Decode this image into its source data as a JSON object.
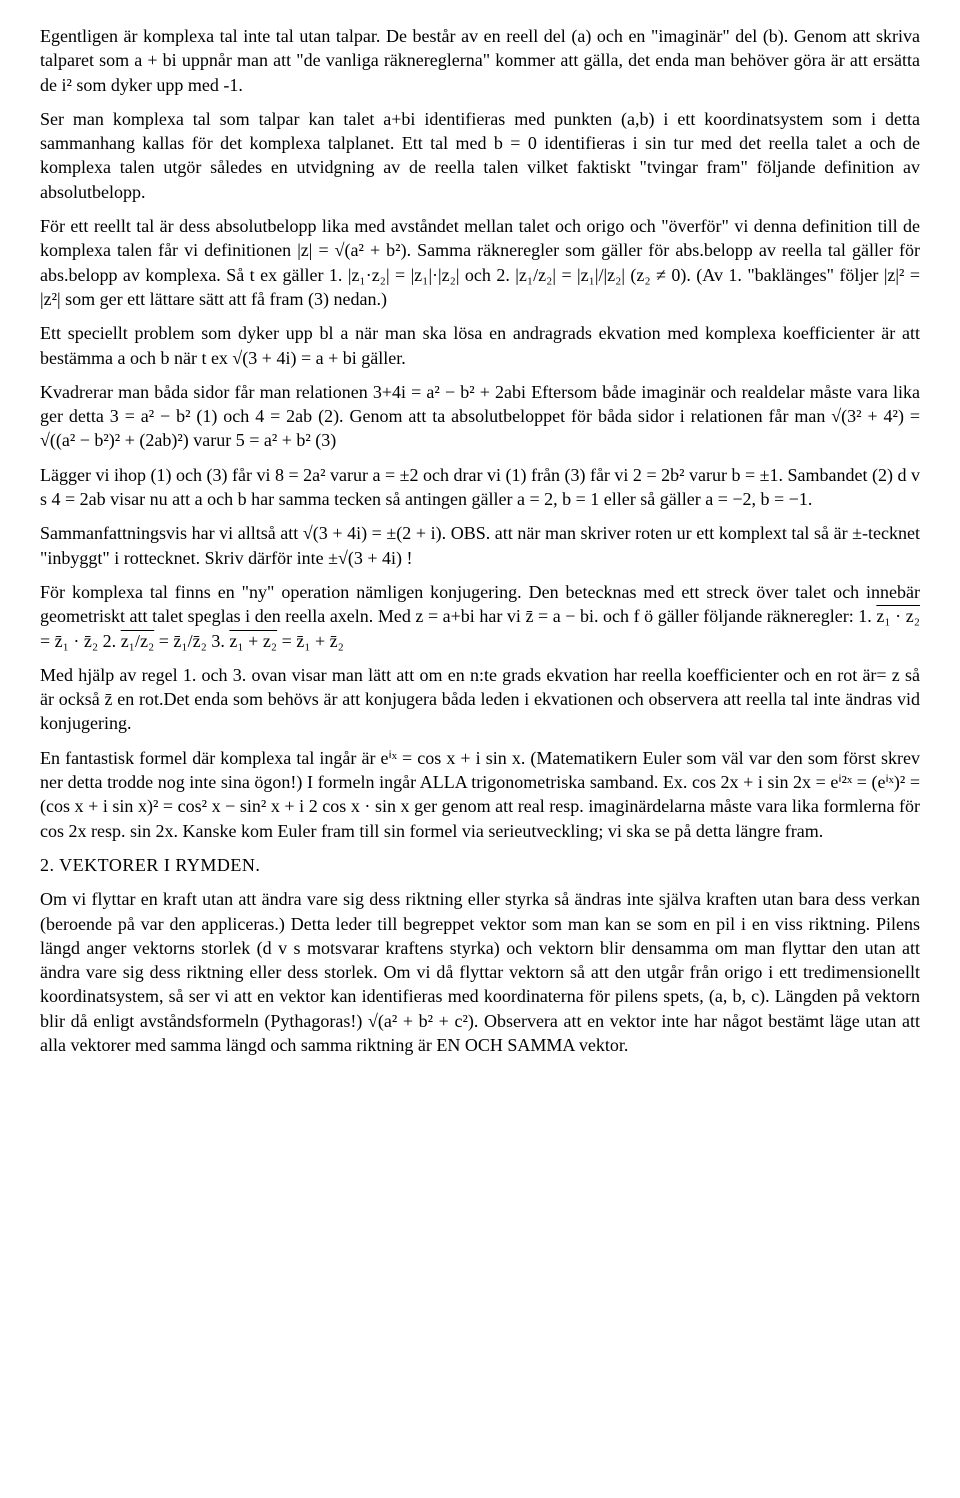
{
  "paragraphs": {
    "p1": "Egentligen är komplexa tal inte tal utan talpar. De består av en reell del (a) och en \"imaginär\" del (b). Genom att skriva talparet som a + bi uppnår man att \"de vanliga räknereglerna\" kommer att gälla, det enda man behöver göra är att ersätta de i² som dyker upp med -1.",
    "p2": "Ser man komplexa tal som talpar kan talet a+bi identifieras med punkten (a,b) i ett koordinatsystem som i detta sammanhang kallas för det komplexa talplanet. Ett tal med b = 0 identifieras i sin tur med det reella talet a och de komplexa talen utgör således en utvidgning av de reella talen vilket faktiskt \"tvingar fram\" följande definition av absolutbelopp.",
    "p3": "För ett reellt tal är dess absolutbelopp lika med avståndet mellan talet och origo och \"överför\" vi denna definition till de komplexa talen får vi definitionen  |z| = √(a² + b²). Samma räkneregler som gäller för abs.belopp av reella tal gäller för abs.belopp av komplexa. Så t ex gäller 1. |z₁·z₂| = |z₁|·|z₂| och 2. |z₁/z₂| = |z₁|/|z₂| (z₂ ≠ 0). (Av 1. \"baklänges\" följer |z|² = |z²| som ger ett lättare sätt att få fram (3) nedan.)",
    "p4": "Ett speciellt problem som dyker upp bl a när man ska lösa en andragrads ekvation med komplexa koefficienter är att bestämma a och b när t  ex √(3 + 4i) = a + bi gäller.",
    "p5": "Kvadrerar man båda sidor får man relationen 3+4i = a² − b² + 2abi Eftersom både imaginär och realdelar måste vara lika ger detta 3 = a² − b² (1) och 4 = 2ab (2). Genom att ta absolutbeloppet för båda sidor i relationen får man  √(3² + 4²) = √((a² − b²)² + (2ab)²) varur 5 = a² + b² (3)",
    "p6": "Lägger vi ihop (1) och (3) får vi  8 = 2a²  varur a = ±2 och drar vi (1) från (3) får vi  2 = 2b²  varur  b = ±1. Sambandet (2) d v s  4 = 2ab visar nu att a och b har samma tecken så antingen gäller a = 2, b = 1 eller så gäller a = −2, b = −1.",
    "p7": "Sammanfattningsvis har vi alltså att √(3 + 4i) = ±(2 + i). OBS. att när man skriver roten ur ett komplext tal så är ±-tecknet \"inbyggt\" i rottecknet. Skriv därför inte ±√(3 + 4i) !",
    "p8a": "För komplexa tal finns en \"ny\" operation nämligen konjugering. Den betecknas med ett streck över talet och innebär geometriskt att talet speglas i den reella axeln. Med z = a+bi har vi z̄ = a − bi. och f  ö gäller följande räkneregler: 1. ",
    "p8b": " = z̄₁ · z̄₂   2. ",
    "p8c": " = z̄₁/z̄₂   3. ",
    "p8d": " = z̄₁ + z̄₂",
    "ov1": "z₁ · z₂",
    "ov2": "z₁/z₂",
    "ov3": "z₁ + z₂",
    "p9": "Med hjälp av regel 1. och 3. ovan visar man lätt att om en n:te grads ekvation har reella koefficienter och en rot är= z så är också z̄ en rot.Det enda som behövs är att konjugera båda leden i ekvationen och observera att reella tal inte ändras vid konjugering.",
    "p10": "En fantastisk formel där komplexa tal ingår är eⁱˣ = cos x + i sin x. (Matematikern Euler som väl var den som först skrev ner detta trodde nog inte sina ögon!) I formeln ingår ALLA trigonometriska samband. Ex. cos 2x + i sin 2x = eⁱ²ˣ = (eⁱˣ)² = (cos x + i sin x)² = cos² x − sin² x + i 2 cos x · sin x ger genom att real resp. imaginärdelarna måste vara lika formlerna för cos 2x resp. sin 2x. Kanske kom Euler fram till sin formel via serieutveckling; vi ska se på detta längre fram.",
    "h2": "2. VEKTORER I RYMDEN.",
    "p11": "Om vi flyttar en kraft utan att ändra vare sig dess riktning eller styrka så ändras inte själva kraften utan bara dess verkan (beroende på var den appliceras.) Detta leder till begreppet vektor som man kan se som en pil i en viss riktning. Pilens längd anger vektorns storlek (d v s motsvarar kraftens styrka) och vektorn blir densamma om man flyttar den utan att ändra vare sig dess riktning eller dess storlek. Om vi då flyttar vektorn så att den utgår från origo i ett tredimensionellt koordinatsystem, så ser vi att en vektor kan identifieras med koordinaterna för pilens spets, (a, b, c). Längden på vektorn blir då enligt avståndsformeln (Pythagoras!) √(a² + b² + c²). Observera att en vektor inte har något bestämt läge utan att alla vektorer med samma längd och samma riktning är EN OCH SAMMA vektor."
  }
}
